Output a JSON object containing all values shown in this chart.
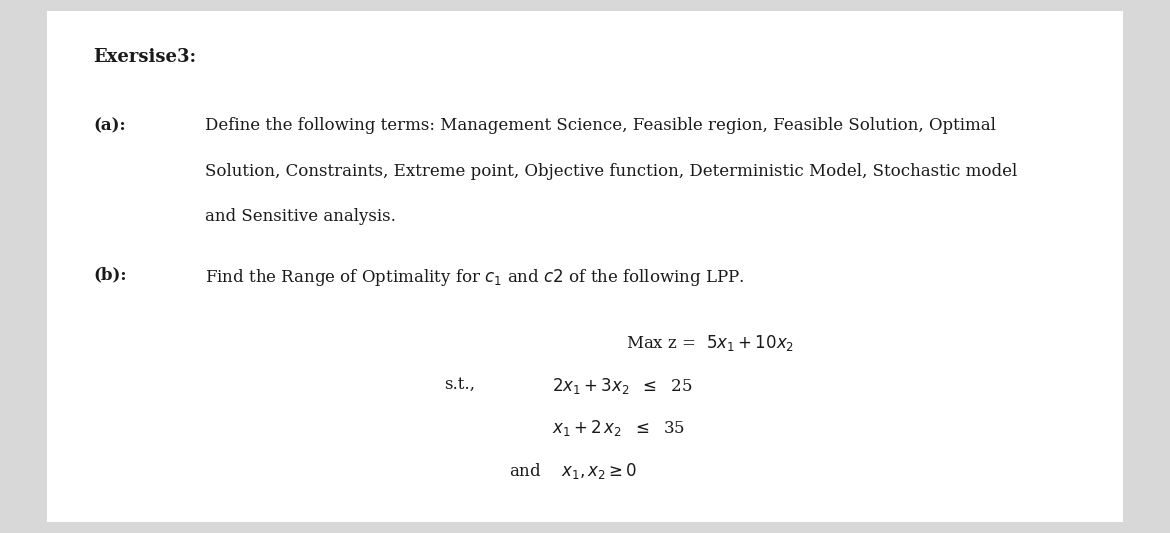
{
  "bg_color": "#d8d8d8",
  "page_bg": "#ffffff",
  "title": "Exersise3:",
  "part_a_label": "(a):",
  "part_a_line1": "Define the following terms: Management Science, Feasible region, Feasible Solution, Optimal",
  "part_a_line2": "Solution, Constraints, Extreme point, Objective function, Deterministic Model, Stochastic model",
  "part_a_line3": "and Sensitive analysis.",
  "part_b_label": "(b):",
  "font_size_title": 13,
  "font_size_body": 12,
  "text_color": "#1a1a1a"
}
